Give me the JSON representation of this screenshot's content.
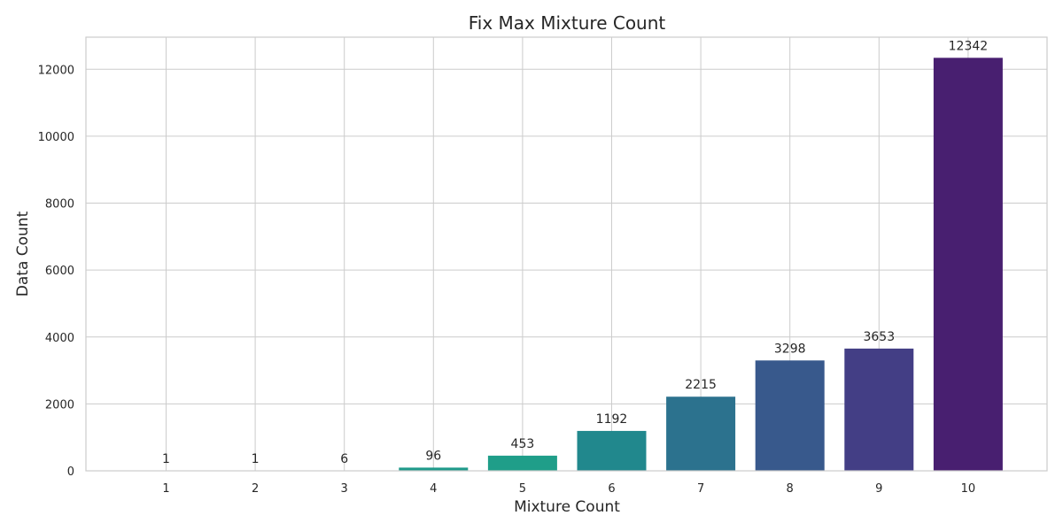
{
  "chart_data": {
    "type": "bar",
    "title": "Fix Max Mixture Count",
    "xlabel": "Mixture Count",
    "ylabel": "Data Count",
    "categories": [
      "1",
      "2",
      "3",
      "4",
      "5",
      "6",
      "7",
      "8",
      "9",
      "10"
    ],
    "values": [
      1,
      1,
      6,
      96,
      453,
      1192,
      2215,
      3298,
      3653,
      12342
    ],
    "data_labels": [
      "1",
      "1",
      "6",
      "96",
      "453",
      "1192",
      "2215",
      "3298",
      "3653",
      "12342"
    ],
    "colors": [
      "#482475",
      "#414487",
      "#355f8d",
      "#2a788e",
      "#21918c",
      "#22a884",
      "#44bf70",
      "#7ad151",
      "#bddf26",
      "#fde725"
    ],
    "bar_colors": [
      "#3ebc74",
      "#2ab07f",
      "#21a685",
      "#1f9a8a",
      "#1f9e89",
      "#21888d",
      "#2c728e",
      "#38598c",
      "#433e85",
      "#481f70"
    ],
    "yticks": [
      0,
      2000,
      4000,
      6000,
      8000,
      10000,
      12000
    ],
    "ytick_labels": [
      "0",
      "2000",
      "4000",
      "6000",
      "8000",
      "10000",
      "12000"
    ],
    "ylim": [
      0,
      12959
    ],
    "grid": true,
    "legend": "none"
  }
}
